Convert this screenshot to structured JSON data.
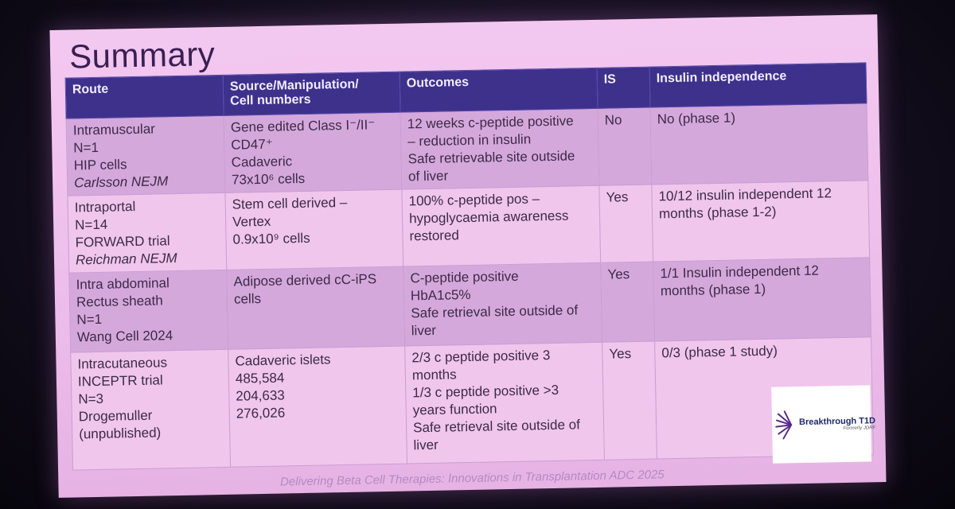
{
  "title": "Summary",
  "table": {
    "headers": [
      "Route",
      "Source/Manipulation/\nCell numbers",
      "Outcomes",
      "IS",
      "Insulin independence"
    ],
    "rows": [
      {
        "route": [
          "Intramuscular",
          "N=1",
          "HIP cells",
          "Carlsson  NEJM"
        ],
        "source": [
          "Gene edited Class I⁻/II⁻",
          "CD47⁺",
          "Cadaveric",
          "73x10⁶ cells"
        ],
        "outcomes": [
          "12 weeks c-peptide positive",
          "– reduction in insulin",
          "Safe retrievable site outside",
          "of liver"
        ],
        "is": "No",
        "independence": [
          "No (phase 1)"
        ]
      },
      {
        "route": [
          "Intraportal",
          "N=14",
          "FORWARD trial",
          "Reichman NEJM"
        ],
        "source": [
          "Stem cell derived –",
          "Vertex",
          "0.9x10⁹ cells"
        ],
        "outcomes": [
          "100% c-peptide pos –",
          "hypoglycaemia awareness",
          "restored"
        ],
        "is": "Yes",
        "independence": [
          "10/12 insulin independent 12",
          "months (phase 1-2)"
        ]
      },
      {
        "route": [
          "Intra abdominal",
          "Rectus sheath",
          "N=1",
          "Wang Cell 2024"
        ],
        "source": [
          "Adipose derived cC-iPS",
          "cells"
        ],
        "outcomes": [
          "C-peptide positive",
          "HbA1c5%",
          "Safe retrieval site outside of",
          "liver"
        ],
        "is": "Yes",
        "independence": [
          "1/1 Insulin independent 12",
          "months (phase 1)"
        ]
      },
      {
        "route": [
          "Intracutaneous",
          "INCEPTR trial",
          "N=3",
          "Drogemuller",
          "(unpublished)"
        ],
        "source": [
          "Cadaveric islets",
          "485,584",
          "204,633",
          "276,026"
        ],
        "outcomes": [
          "2/3 c peptide positive 3",
          "months",
          "1/3  c peptide positive >3",
          "years function",
          "Safe retrieval site outside of",
          "liver"
        ],
        "is": "Yes",
        "independence": [
          "0/3 (phase 1 study)"
        ]
      }
    ]
  },
  "footer": "Delivering Beta Cell Therapies: Innovations in Transplantation ADC 2025",
  "logo": {
    "name": "Breakthrough T1D",
    "sub": "Formerly JDRF"
  }
}
